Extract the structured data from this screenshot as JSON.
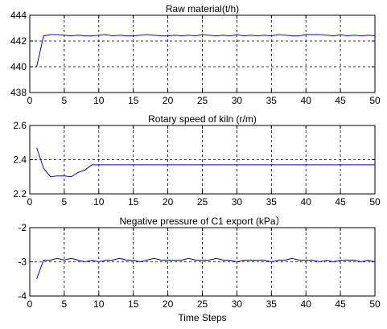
{
  "chart_data": [
    {
      "type": "line",
      "title": "Raw material(t/h)",
      "xlim": [
        0,
        50
      ],
      "ylim": [
        438,
        444
      ],
      "xticks": [
        0,
        5,
        10,
        15,
        20,
        25,
        30,
        35,
        40,
        45,
        50
      ],
      "yticks": [
        438,
        440,
        442,
        444
      ],
      "grid": true,
      "series": [
        {
          "color": "#0000ff",
          "x": [
            1,
            2,
            3,
            4,
            5,
            6,
            7,
            8,
            9,
            10,
            11,
            12,
            13,
            14,
            15,
            16,
            17,
            18,
            19,
            20,
            21,
            22,
            23,
            24,
            25,
            26,
            27,
            28,
            29,
            30,
            31,
            32,
            33,
            34,
            35,
            36,
            37,
            38,
            39,
            40,
            41,
            42,
            43,
            44,
            45,
            46,
            47,
            48,
            49,
            50
          ],
          "y": [
            440.0,
            442.4,
            442.5,
            442.5,
            442.45,
            442.4,
            442.45,
            442.4,
            442.4,
            442.45,
            442.5,
            442.4,
            442.45,
            442.4,
            442.4,
            442.45,
            442.5,
            442.45,
            442.4,
            442.4,
            442.45,
            442.4,
            442.45,
            442.4,
            442.5,
            442.45,
            442.4,
            442.45,
            442.4,
            442.5,
            442.4,
            442.45,
            442.4,
            442.45,
            442.4,
            442.5,
            442.45,
            442.4,
            442.4,
            442.5,
            442.5,
            442.5,
            442.45,
            442.4,
            442.5,
            442.4,
            442.45,
            442.4,
            442.45,
            442.4
          ]
        }
      ]
    },
    {
      "type": "line",
      "title": "Rotary speed of kiln (r/m)",
      "xlim": [
        0,
        50
      ],
      "ylim": [
        2.2,
        2.6
      ],
      "xticks": [
        0,
        5,
        10,
        15,
        20,
        25,
        30,
        35,
        40,
        45,
        50
      ],
      "yticks": [
        2.2,
        2.4,
        2.6
      ],
      "grid": true,
      "series": [
        {
          "color": "#0000ff",
          "x": [
            1,
            2,
            3,
            4,
            5,
            6,
            7,
            8,
            9,
            10,
            11,
            12,
            13,
            14,
            15,
            16,
            17,
            18,
            19,
            20,
            21,
            22,
            23,
            24,
            25,
            26,
            27,
            28,
            29,
            30,
            31,
            32,
            33,
            34,
            35,
            36,
            37,
            38,
            39,
            40,
            41,
            42,
            43,
            44,
            45,
            46,
            47,
            48,
            49,
            50
          ],
          "y": [
            2.47,
            2.35,
            2.3,
            2.305,
            2.305,
            2.3,
            2.325,
            2.34,
            2.37,
            2.37,
            2.37,
            2.37,
            2.37,
            2.37,
            2.37,
            2.37,
            2.37,
            2.37,
            2.37,
            2.37,
            2.37,
            2.37,
            2.37,
            2.37,
            2.37,
            2.37,
            2.37,
            2.37,
            2.37,
            2.37,
            2.37,
            2.37,
            2.37,
            2.37,
            2.37,
            2.37,
            2.37,
            2.37,
            2.37,
            2.37,
            2.37,
            2.37,
            2.37,
            2.37,
            2.37,
            2.37,
            2.37,
            2.37,
            2.37,
            2.37
          ]
        }
      ]
    },
    {
      "type": "line",
      "title": "Negative pressure of C1 export (kPa）",
      "xlabel": "Time Steps",
      "xlim": [
        0,
        50
      ],
      "ylim": [
        -4,
        -2
      ],
      "xticks": [
        0,
        5,
        10,
        15,
        20,
        25,
        30,
        35,
        40,
        45,
        50
      ],
      "yticks": [
        -4,
        -3,
        -2
      ],
      "grid": true,
      "series": [
        {
          "color": "#0000ff",
          "x": [
            1,
            2,
            3,
            4,
            5,
            6,
            7,
            8,
            9,
            10,
            11,
            12,
            13,
            14,
            15,
            16,
            17,
            18,
            19,
            20,
            21,
            22,
            23,
            24,
            25,
            26,
            27,
            28,
            29,
            30,
            31,
            32,
            33,
            34,
            35,
            36,
            37,
            38,
            39,
            40,
            41,
            42,
            43,
            44,
            45,
            46,
            47,
            48,
            49,
            50
          ],
          "y": [
            -3.5,
            -2.95,
            -2.95,
            -2.9,
            -2.95,
            -2.9,
            -2.95,
            -3.0,
            -2.95,
            -3.0,
            -2.95,
            -2.95,
            -2.9,
            -2.95,
            -2.95,
            -3.0,
            -2.95,
            -2.9,
            -2.95,
            -2.95,
            -2.95,
            -2.95,
            -2.9,
            -2.95,
            -2.95,
            -2.95,
            -2.9,
            -2.95,
            -2.95,
            -3.0,
            -2.95,
            -2.95,
            -2.95,
            -2.95,
            -3.0,
            -2.95,
            -2.95,
            -2.9,
            -2.95,
            -2.95,
            -2.95,
            -3.0,
            -2.95,
            -3.0,
            -2.95,
            -2.95,
            -2.95,
            -3.0,
            -2.95,
            -3.0
          ]
        }
      ]
    }
  ]
}
